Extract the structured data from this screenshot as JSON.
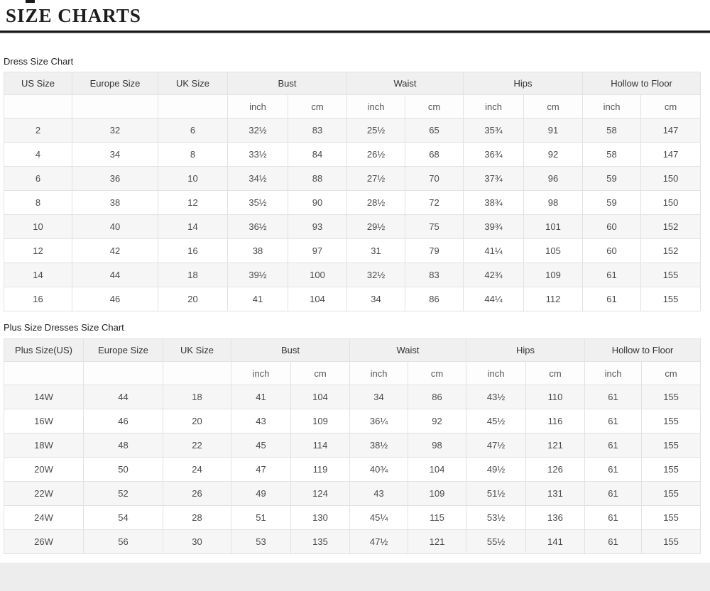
{
  "header": {
    "title": "SIZE CHARTS"
  },
  "tables": [
    {
      "label": "Dress Size Chart",
      "size_columns": [
        "US Size",
        "Europe Size",
        "UK Size"
      ],
      "groups": [
        "Bust",
        "Waist",
        "Hips",
        "Hollow to Floor"
      ],
      "units": [
        "inch",
        "cm"
      ],
      "rows": [
        [
          "2",
          "32",
          "6",
          "32½",
          "83",
          "25½",
          "65",
          "35¾",
          "91",
          "58",
          "147"
        ],
        [
          "4",
          "34",
          "8",
          "33½",
          "84",
          "26½",
          "68",
          "36¾",
          "92",
          "58",
          "147"
        ],
        [
          "6",
          "36",
          "10",
          "34½",
          "88",
          "27½",
          "70",
          "37¾",
          "96",
          "59",
          "150"
        ],
        [
          "8",
          "38",
          "12",
          "35½",
          "90",
          "28½",
          "72",
          "38¾",
          "98",
          "59",
          "150"
        ],
        [
          "10",
          "40",
          "14",
          "36½",
          "93",
          "29½",
          "75",
          "39¾",
          "101",
          "60",
          "152"
        ],
        [
          "12",
          "42",
          "16",
          "38",
          "97",
          "31",
          "79",
          "41¼",
          "105",
          "60",
          "152"
        ],
        [
          "14",
          "44",
          "18",
          "39½",
          "100",
          "32½",
          "83",
          "42¾",
          "109",
          "61",
          "155"
        ],
        [
          "16",
          "46",
          "20",
          "41",
          "104",
          "34",
          "86",
          "44¼",
          "112",
          "61",
          "155"
        ]
      ]
    },
    {
      "label": "Plus Size Dresses Size Chart",
      "size_columns": [
        "Plus Size(US)",
        "Europe Size",
        "UK Size"
      ],
      "groups": [
        "Bust",
        "Waist",
        "Hips",
        "Hollow to Floor"
      ],
      "units": [
        "inch",
        "cm"
      ],
      "rows": [
        [
          "14W",
          "44",
          "18",
          "41",
          "104",
          "34",
          "86",
          "43½",
          "110",
          "61",
          "155"
        ],
        [
          "16W",
          "46",
          "20",
          "43",
          "109",
          "36¼",
          "92",
          "45½",
          "116",
          "61",
          "155"
        ],
        [
          "18W",
          "48",
          "22",
          "45",
          "114",
          "38½",
          "98",
          "47½",
          "121",
          "61",
          "155"
        ],
        [
          "20W",
          "50",
          "24",
          "47",
          "119",
          "40¾",
          "104",
          "49½",
          "126",
          "61",
          "155"
        ],
        [
          "22W",
          "52",
          "26",
          "49",
          "124",
          "43",
          "109",
          "51½",
          "131",
          "61",
          "155"
        ],
        [
          "24W",
          "54",
          "28",
          "51",
          "130",
          "45¼",
          "115",
          "53½",
          "136",
          "61",
          "155"
        ],
        [
          "26W",
          "56",
          "30",
          "53",
          "135",
          "47½",
          "121",
          "55½",
          "141",
          "61",
          "155"
        ]
      ]
    }
  ],
  "colors": {
    "rule": "#161616",
    "header_bg": "#f0f0f0",
    "row_alt_bg": "#f6f6f6",
    "border": "#e2e2e2",
    "footer_bg": "#ededee"
  }
}
